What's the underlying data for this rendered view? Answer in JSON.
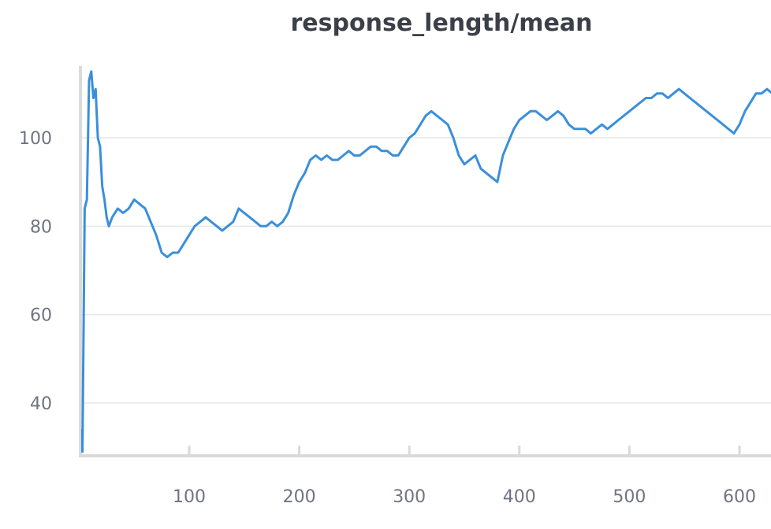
{
  "chart_data": {
    "type": "line",
    "title": "response_length/mean",
    "xlabel": "",
    "ylabel": "",
    "xlim": [
      0,
      630
    ],
    "ylim": [
      28,
      116
    ],
    "x_ticks": [
      100,
      200,
      300,
      400,
      500,
      600
    ],
    "y_ticks": [
      40,
      60,
      80,
      100
    ],
    "grid": true,
    "legend": "none",
    "line_color": "#3a8fdb",
    "series": [
      {
        "x": [
          1,
          3,
          5,
          7,
          9,
          11,
          13,
          15,
          17,
          19,
          21,
          23,
          25,
          27,
          30,
          35,
          40,
          45,
          50,
          55,
          60,
          65,
          70,
          75,
          80,
          85,
          90,
          95,
          100,
          105,
          110,
          115,
          120,
          125,
          130,
          135,
          140,
          145,
          150,
          155,
          160,
          165,
          170,
          175,
          180,
          185,
          190,
          195,
          200,
          205,
          210,
          215,
          220,
          225,
          230,
          235,
          240,
          245,
          250,
          255,
          260,
          265,
          270,
          275,
          280,
          285,
          290,
          295,
          300,
          305,
          310,
          315,
          320,
          325,
          330,
          335,
          340,
          345,
          350,
          355,
          360,
          365,
          370,
          375,
          380,
          385,
          390,
          395,
          400,
          405,
          410,
          415,
          420,
          425,
          430,
          435,
          440,
          445,
          450,
          455,
          460,
          465,
          470,
          475,
          480,
          485,
          490,
          495,
          500,
          505,
          510,
          515,
          520,
          525,
          530,
          535,
          540,
          545,
          550,
          555,
          560,
          565,
          570,
          575,
          580,
          585,
          590,
          595,
          600,
          605,
          610,
          615,
          620,
          625,
          630
        ],
        "values": [
          34,
          29,
          84,
          86,
          113,
          115,
          109,
          111,
          100,
          98,
          89,
          86,
          82,
          80,
          82,
          84,
          83,
          84,
          86,
          85,
          84,
          81,
          78,
          74,
          73,
          74,
          74,
          76,
          78,
          80,
          81,
          82,
          81,
          80,
          79,
          80,
          81,
          84,
          83,
          82,
          81,
          80,
          80,
          81,
          80,
          81,
          83,
          87,
          90,
          92,
          95,
          96,
          95,
          96,
          95,
          95,
          96,
          97,
          96,
          96,
          97,
          98,
          98,
          97,
          97,
          96,
          96,
          98,
          100,
          101,
          103,
          105,
          106,
          105,
          104,
          103,
          100,
          96,
          94,
          95,
          96,
          93,
          92,
          91,
          90,
          96,
          99,
          102,
          104,
          105,
          106,
          106,
          105,
          104,
          105,
          106,
          105,
          103,
          102,
          102,
          102,
          101,
          102,
          103,
          102,
          103,
          104,
          105,
          106,
          107,
          108,
          109,
          109,
          110,
          110,
          109,
          110,
          111,
          110,
          109,
          108,
          107,
          106,
          105,
          104,
          103,
          102,
          101,
          103,
          106,
          108,
          110,
          110,
          111,
          110
        ]
      }
    ]
  }
}
